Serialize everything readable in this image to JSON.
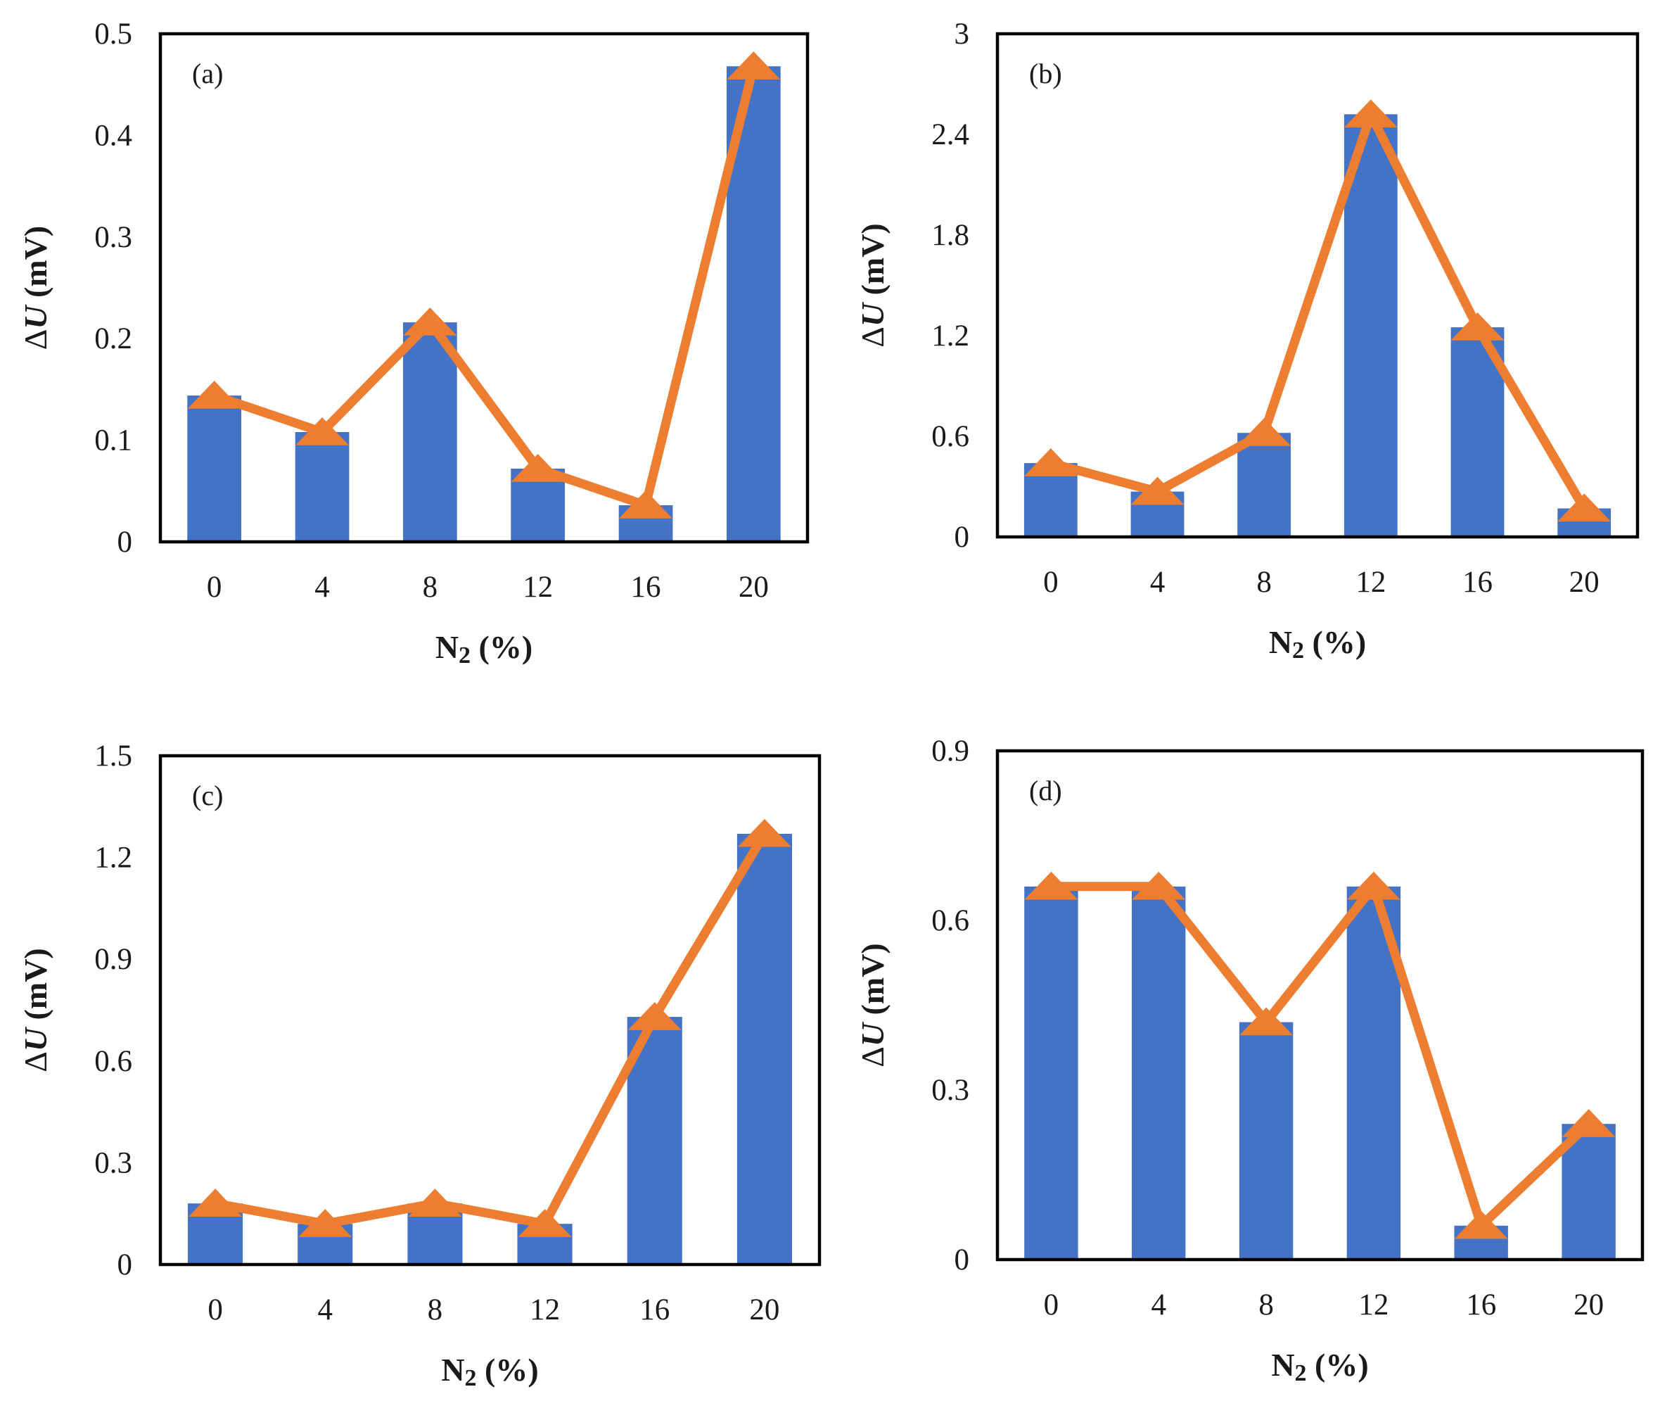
{
  "colors": {
    "bar": "#4472C4",
    "line": "#ED7D31",
    "frame": "#000000",
    "text": "#1a1a1a"
  },
  "chart_data": [
    {
      "type": "bar+line",
      "panel_label": "(a)",
      "categories": [
        "0",
        "4",
        "8",
        "12",
        "16",
        "20"
      ],
      "series": [
        {
          "name": "bar",
          "kind": "bar",
          "values": [
            0.144,
            0.108,
            0.216,
            0.072,
            0.036,
            0.468
          ]
        },
        {
          "name": "line",
          "kind": "line",
          "marker": "triangle",
          "values": [
            0.144,
            0.108,
            0.216,
            0.072,
            0.036,
            0.468
          ]
        }
      ],
      "xlabel_main": "N",
      "xlabel_sub": "2",
      "xlabel_tail": " (%)",
      "ylabel_delta": "Δ",
      "ylabel_var": "U",
      "ylabel_unit": " (mV)",
      "ylim": [
        0,
        0.5
      ],
      "yticks": [
        0,
        0.1,
        0.2,
        0.3,
        0.4,
        0.5
      ],
      "ytick_labels": [
        "0",
        "0.1",
        "0.2",
        "0.3",
        "0.4",
        "0.5"
      ]
    },
    {
      "type": "bar+line",
      "panel_label": "(b)",
      "categories": [
        "0",
        "4",
        "8",
        "12",
        "16",
        "20"
      ],
      "series": [
        {
          "name": "bar",
          "kind": "bar",
          "values": [
            0.44,
            0.27,
            0.62,
            2.52,
            1.25,
            0.17
          ]
        },
        {
          "name": "line",
          "kind": "line",
          "marker": "triangle",
          "values": [
            0.44,
            0.27,
            0.62,
            2.52,
            1.25,
            0.17
          ]
        }
      ],
      "xlabel_main": "N",
      "xlabel_sub": "2",
      "xlabel_tail": " (%)",
      "ylabel_delta": "Δ",
      "ylabel_var": "U",
      "ylabel_unit": " (mV)",
      "ylim": [
        0,
        3
      ],
      "yticks": [
        0,
        0.6,
        1.2,
        1.8,
        2.4,
        3
      ],
      "ytick_labels": [
        "0",
        "0.6",
        "1.2",
        "1.8",
        "2.4",
        "3"
      ]
    },
    {
      "type": "bar+line",
      "panel_label": "(c)",
      "categories": [
        "0",
        "4",
        "8",
        "12",
        "16",
        "20"
      ],
      "series": [
        {
          "name": "bar",
          "kind": "bar",
          "values": [
            0.18,
            0.12,
            0.18,
            0.12,
            0.73,
            1.27
          ]
        },
        {
          "name": "line",
          "kind": "line",
          "marker": "triangle",
          "values": [
            0.18,
            0.12,
            0.18,
            0.12,
            0.73,
            1.27
          ]
        }
      ],
      "xlabel_main": "N",
      "xlabel_sub": "2",
      "xlabel_tail": " (%)",
      "ylabel_delta": "Δ",
      "ylabel_var": "U",
      "ylabel_unit": " (mV)",
      "ylim": [
        0,
        1.5
      ],
      "yticks": [
        0,
        0.3,
        0.6,
        0.9,
        1.2,
        1.5
      ],
      "ytick_labels": [
        "0",
        "0.3",
        "0.6",
        "0.9",
        "1.2",
        "1.5"
      ]
    },
    {
      "type": "bar+line",
      "panel_label": "(d)",
      "categories": [
        "0",
        "4",
        "8",
        "12",
        "16",
        "20"
      ],
      "series": [
        {
          "name": "bar",
          "kind": "bar",
          "values": [
            0.66,
            0.66,
            0.42,
            0.66,
            0.06,
            0.24
          ]
        },
        {
          "name": "line",
          "kind": "line",
          "marker": "triangle",
          "values": [
            0.66,
            0.66,
            0.42,
            0.66,
            0.06,
            0.24
          ]
        }
      ],
      "xlabel_main": "N",
      "xlabel_sub": "2",
      "xlabel_tail": " (%)",
      "ylabel_delta": "Δ",
      "ylabel_var": "U",
      "ylabel_unit": " (mV)",
      "ylim": [
        0,
        0.9
      ],
      "yticks": [
        0,
        0.3,
        0.6,
        0.9
      ],
      "ytick_labels": [
        "0",
        "0.3",
        "0.6",
        "0.9"
      ]
    }
  ]
}
